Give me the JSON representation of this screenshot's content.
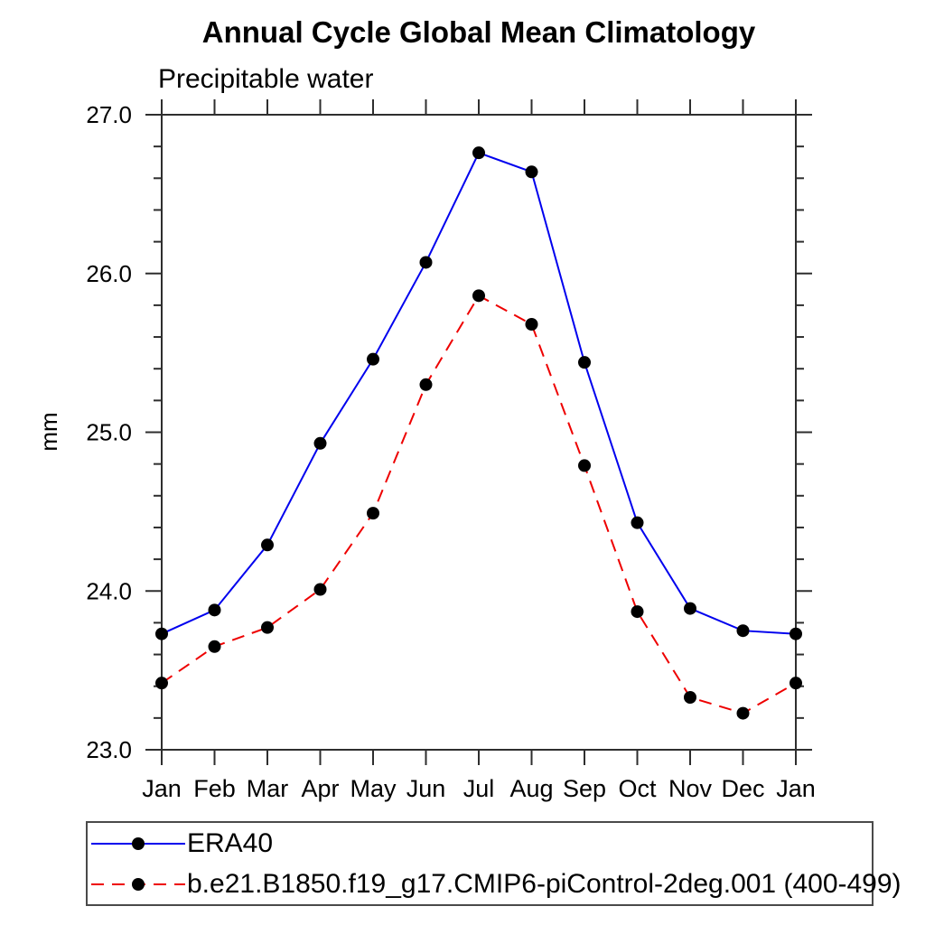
{
  "chart_data": {
    "type": "line",
    "title": "Annual Cycle Global Mean Climatology",
    "subtitle": "Precipitable water",
    "ylabel": "mm",
    "xlabel": "",
    "categories": [
      "Jan",
      "Feb",
      "Mar",
      "Apr",
      "May",
      "Jun",
      "Jul",
      "Aug",
      "Sep",
      "Oct",
      "Nov",
      "Dec",
      "Jan"
    ],
    "ylim": [
      23.0,
      27.0
    ],
    "ytick_labels": [
      "23.0",
      "24.0",
      "25.0",
      "26.0",
      "27.0"
    ],
    "ytick_values": [
      23.0,
      24.0,
      25.0,
      26.0,
      27.0
    ],
    "ytick_minor_step": 0.2,
    "grid": false,
    "legend_position": "bottom-left",
    "series": [
      {
        "name": "ERA40",
        "color": "#0000ee",
        "line_style": "solid",
        "marker": "circle",
        "marker_color": "#000000",
        "values": [
          23.73,
          23.88,
          24.29,
          24.93,
          25.46,
          26.07,
          26.76,
          26.64,
          25.44,
          24.43,
          23.89,
          23.75,
          23.73
        ]
      },
      {
        "name": "b.e21.B1850.f19_g17.CMIP6-piControl-2deg.001 (400-499)",
        "color": "#ee0000",
        "line_style": "dashed",
        "marker": "circle",
        "marker_color": "#000000",
        "values": [
          23.42,
          23.65,
          23.77,
          24.01,
          24.49,
          25.3,
          25.86,
          25.68,
          24.79,
          23.87,
          23.33,
          23.23,
          23.42
        ]
      }
    ]
  },
  "colors": {
    "axis": "#2e2e2e",
    "text": "#000000",
    "background": "#ffffff",
    "legend_border": "#4a4a4a"
  }
}
